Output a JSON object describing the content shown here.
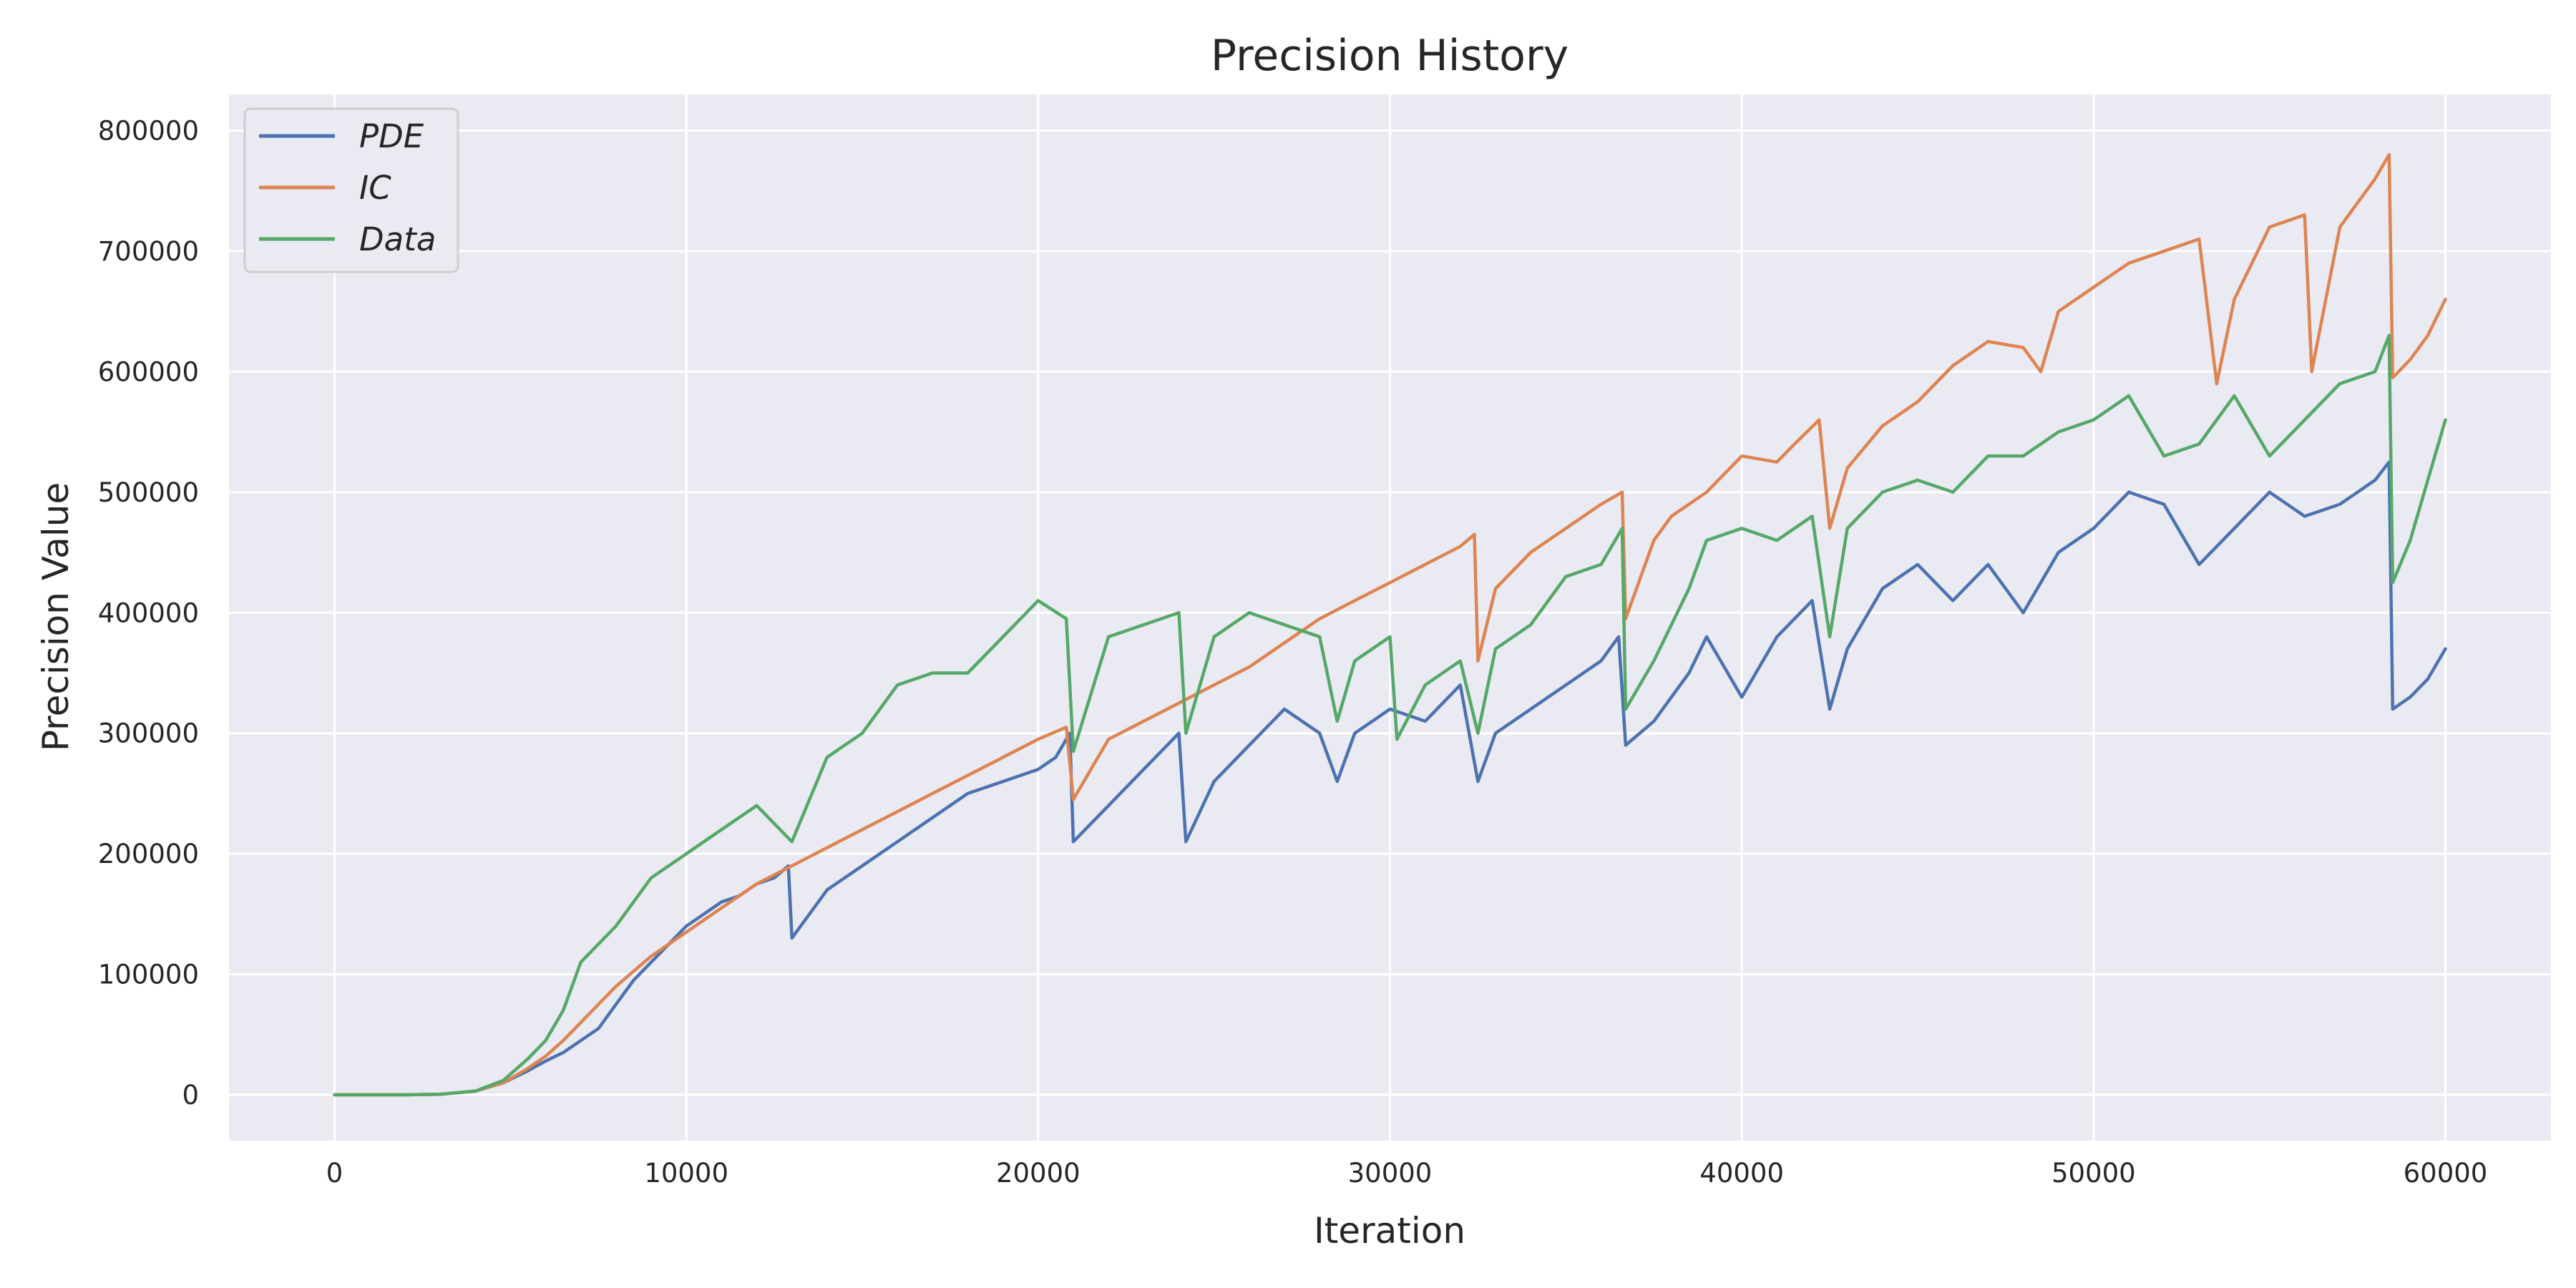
{
  "chart_data": {
    "type": "line",
    "title": "Precision History",
    "xlabel": "Iteration",
    "ylabel": "Precision Value",
    "xlim": [
      -3000,
      63000
    ],
    "ylim": [
      -38000,
      830000
    ],
    "xticks": [
      0,
      10000,
      20000,
      30000,
      40000,
      50000,
      60000
    ],
    "yticks": [
      0,
      100000,
      200000,
      300000,
      400000,
      500000,
      600000,
      700000,
      800000
    ],
    "grid": true,
    "legend": "top-left",
    "series": [
      {
        "name": "PDE",
        "color": "#4c72b0",
        "points": [
          [
            0,
            0
          ],
          [
            2000,
            0
          ],
          [
            3000,
            500
          ],
          [
            4000,
            3000
          ],
          [
            4800,
            10000
          ],
          [
            5500,
            20000
          ],
          [
            6000,
            28000
          ],
          [
            6500,
            35000
          ],
          [
            7000,
            45000
          ],
          [
            7500,
            55000
          ],
          [
            8000,
            75000
          ],
          [
            8500,
            95000
          ],
          [
            9000,
            110000
          ],
          [
            9500,
            125000
          ],
          [
            10000,
            140000
          ],
          [
            10500,
            150000
          ],
          [
            11000,
            160000
          ],
          [
            11500,
            165000
          ],
          [
            12000,
            175000
          ],
          [
            12500,
            180000
          ],
          [
            12900,
            190000
          ],
          [
            13000,
            130000
          ],
          [
            13500,
            150000
          ],
          [
            14000,
            170000
          ],
          [
            15000,
            190000
          ],
          [
            16000,
            210000
          ],
          [
            17000,
            230000
          ],
          [
            18000,
            250000
          ],
          [
            19000,
            260000
          ],
          [
            20000,
            270000
          ],
          [
            20500,
            280000
          ],
          [
            20900,
            300000
          ],
          [
            21000,
            210000
          ],
          [
            22000,
            240000
          ],
          [
            23000,
            270000
          ],
          [
            24000,
            300000
          ],
          [
            24200,
            210000
          ],
          [
            25000,
            260000
          ],
          [
            26000,
            290000
          ],
          [
            27000,
            320000
          ],
          [
            28000,
            300000
          ],
          [
            28500,
            260000
          ],
          [
            29000,
            300000
          ],
          [
            30000,
            320000
          ],
          [
            31000,
            310000
          ],
          [
            32000,
            340000
          ],
          [
            32500,
            260000
          ],
          [
            33000,
            300000
          ],
          [
            34000,
            320000
          ],
          [
            35000,
            340000
          ],
          [
            36000,
            360000
          ],
          [
            36500,
            380000
          ],
          [
            36700,
            290000
          ],
          [
            37500,
            310000
          ],
          [
            38500,
            350000
          ],
          [
            39000,
            380000
          ],
          [
            40000,
            330000
          ],
          [
            41000,
            380000
          ],
          [
            42000,
            410000
          ],
          [
            42500,
            320000
          ],
          [
            43000,
            370000
          ],
          [
            44000,
            420000
          ],
          [
            45000,
            440000
          ],
          [
            46000,
            410000
          ],
          [
            47000,
            440000
          ],
          [
            48000,
            400000
          ],
          [
            49000,
            450000
          ],
          [
            50000,
            470000
          ],
          [
            51000,
            500000
          ],
          [
            52000,
            490000
          ],
          [
            53000,
            440000
          ],
          [
            54000,
            470000
          ],
          [
            55000,
            500000
          ],
          [
            56000,
            480000
          ],
          [
            57000,
            490000
          ],
          [
            58000,
            510000
          ],
          [
            58400,
            525000
          ],
          [
            58500,
            320000
          ],
          [
            59000,
            330000
          ],
          [
            59500,
            345000
          ],
          [
            60000,
            370000
          ]
        ]
      },
      {
        "name": "IC",
        "color": "#dd8452",
        "points": [
          [
            0,
            0
          ],
          [
            2000,
            0
          ],
          [
            3000,
            500
          ],
          [
            4000,
            3000
          ],
          [
            4800,
            10000
          ],
          [
            5500,
            22000
          ],
          [
            6000,
            32000
          ],
          [
            6500,
            45000
          ],
          [
            7000,
            60000
          ],
          [
            8000,
            90000
          ],
          [
            9000,
            115000
          ],
          [
            10000,
            135000
          ],
          [
            11000,
            155000
          ],
          [
            12000,
            175000
          ],
          [
            13000,
            190000
          ],
          [
            14000,
            205000
          ],
          [
            15000,
            220000
          ],
          [
            16000,
            235000
          ],
          [
            17000,
            250000
          ],
          [
            18000,
            265000
          ],
          [
            19000,
            280000
          ],
          [
            20000,
            295000
          ],
          [
            20800,
            305000
          ],
          [
            21000,
            245000
          ],
          [
            22000,
            295000
          ],
          [
            23000,
            310000
          ],
          [
            24000,
            325000
          ],
          [
            25000,
            340000
          ],
          [
            26000,
            355000
          ],
          [
            27000,
            375000
          ],
          [
            28000,
            395000
          ],
          [
            29000,
            410000
          ],
          [
            30000,
            425000
          ],
          [
            31000,
            440000
          ],
          [
            32000,
            455000
          ],
          [
            32400,
            465000
          ],
          [
            32500,
            360000
          ],
          [
            33000,
            420000
          ],
          [
            34000,
            450000
          ],
          [
            35000,
            470000
          ],
          [
            36000,
            490000
          ],
          [
            36600,
            500000
          ],
          [
            36700,
            395000
          ],
          [
            37500,
            460000
          ],
          [
            38000,
            480000
          ],
          [
            39000,
            500000
          ],
          [
            40000,
            530000
          ],
          [
            41000,
            525000
          ],
          [
            41500,
            540000
          ],
          [
            42200,
            560000
          ],
          [
            42500,
            470000
          ],
          [
            43000,
            520000
          ],
          [
            44000,
            555000
          ],
          [
            45000,
            575000
          ],
          [
            46000,
            605000
          ],
          [
            47000,
            625000
          ],
          [
            48000,
            620000
          ],
          [
            48500,
            600000
          ],
          [
            49000,
            650000
          ],
          [
            50000,
            670000
          ],
          [
            51000,
            690000
          ],
          [
            52000,
            700000
          ],
          [
            53000,
            710000
          ],
          [
            53500,
            590000
          ],
          [
            54000,
            660000
          ],
          [
            55000,
            720000
          ],
          [
            56000,
            730000
          ],
          [
            56200,
            600000
          ],
          [
            57000,
            720000
          ],
          [
            58000,
            760000
          ],
          [
            58400,
            780000
          ],
          [
            58500,
            595000
          ],
          [
            59000,
            610000
          ],
          [
            59500,
            630000
          ],
          [
            60000,
            660000
          ]
        ]
      },
      {
        "name": "Data",
        "color": "#55a868",
        "points": [
          [
            0,
            0
          ],
          [
            2000,
            0
          ],
          [
            3000,
            500
          ],
          [
            4000,
            3000
          ],
          [
            4800,
            12000
          ],
          [
            5500,
            30000
          ],
          [
            6000,
            45000
          ],
          [
            6500,
            70000
          ],
          [
            7000,
            110000
          ],
          [
            8000,
            140000
          ],
          [
            9000,
            180000
          ],
          [
            10000,
            200000
          ],
          [
            11000,
            220000
          ],
          [
            12000,
            240000
          ],
          [
            13000,
            210000
          ],
          [
            14000,
            280000
          ],
          [
            15000,
            300000
          ],
          [
            16000,
            340000
          ],
          [
            17000,
            350000
          ],
          [
            18000,
            350000
          ],
          [
            19000,
            380000
          ],
          [
            20000,
            410000
          ],
          [
            20800,
            395000
          ],
          [
            21000,
            285000
          ],
          [
            22000,
            380000
          ],
          [
            23000,
            390000
          ],
          [
            24000,
            400000
          ],
          [
            24200,
            300000
          ],
          [
            25000,
            380000
          ],
          [
            26000,
            400000
          ],
          [
            27000,
            390000
          ],
          [
            28000,
            380000
          ],
          [
            28500,
            310000
          ],
          [
            29000,
            360000
          ],
          [
            30000,
            380000
          ],
          [
            30200,
            295000
          ],
          [
            31000,
            340000
          ],
          [
            32000,
            360000
          ],
          [
            32500,
            300000
          ],
          [
            33000,
            370000
          ],
          [
            34000,
            390000
          ],
          [
            35000,
            430000
          ],
          [
            36000,
            440000
          ],
          [
            36600,
            470000
          ],
          [
            36700,
            320000
          ],
          [
            37500,
            360000
          ],
          [
            38500,
            420000
          ],
          [
            39000,
            460000
          ],
          [
            40000,
            470000
          ],
          [
            41000,
            460000
          ],
          [
            42000,
            480000
          ],
          [
            42500,
            380000
          ],
          [
            43000,
            470000
          ],
          [
            44000,
            500000
          ],
          [
            45000,
            510000
          ],
          [
            46000,
            500000
          ],
          [
            47000,
            530000
          ],
          [
            48000,
            530000
          ],
          [
            49000,
            550000
          ],
          [
            50000,
            560000
          ],
          [
            51000,
            580000
          ],
          [
            52000,
            530000
          ],
          [
            53000,
            540000
          ],
          [
            54000,
            580000
          ],
          [
            55000,
            530000
          ],
          [
            56000,
            560000
          ],
          [
            57000,
            590000
          ],
          [
            58000,
            600000
          ],
          [
            58400,
            630000
          ],
          [
            58500,
            425000
          ],
          [
            59000,
            460000
          ],
          [
            59500,
            510000
          ],
          [
            60000,
            560000
          ]
        ]
      }
    ]
  }
}
